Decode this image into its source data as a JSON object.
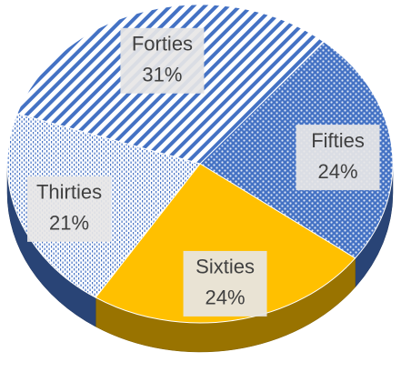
{
  "chart_data": {
    "type": "pie",
    "categories": [
      "Fifties",
      "Sixties",
      "Thirties",
      "Forties"
    ],
    "values": [
      24,
      24,
      21,
      31
    ],
    "value_labels": [
      "24%",
      "24%",
      "21%",
      "31%"
    ],
    "colors": [
      "#4472c4",
      "#ffc000",
      "#4472c4",
      "#4472c4"
    ],
    "patterns": [
      "dots",
      "solid",
      "sparse-dots",
      "stripes"
    ]
  }
}
